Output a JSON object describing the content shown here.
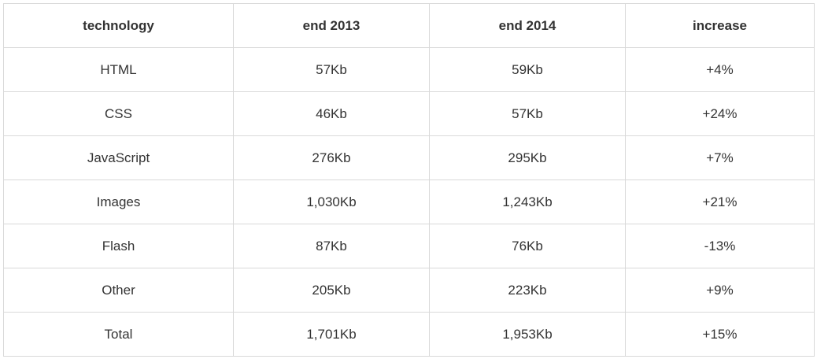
{
  "table": {
    "headers": [
      "technology",
      "end 2013",
      "end 2014",
      "increase"
    ],
    "rows": [
      [
        "HTML",
        "57Kb",
        "59Kb",
        "+4%"
      ],
      [
        "CSS",
        "46Kb",
        "57Kb",
        "+24%"
      ],
      [
        "JavaScript",
        "276Kb",
        "295Kb",
        "+7%"
      ],
      [
        "Images",
        "1,030Kb",
        "1,243Kb",
        "+21%"
      ],
      [
        "Flash",
        "87Kb",
        "76Kb",
        "-13%"
      ],
      [
        "Other",
        "205Kb",
        "223Kb",
        "+9%"
      ],
      [
        "Total",
        "1,701Kb",
        "1,953Kb",
        "+15%"
      ]
    ]
  }
}
